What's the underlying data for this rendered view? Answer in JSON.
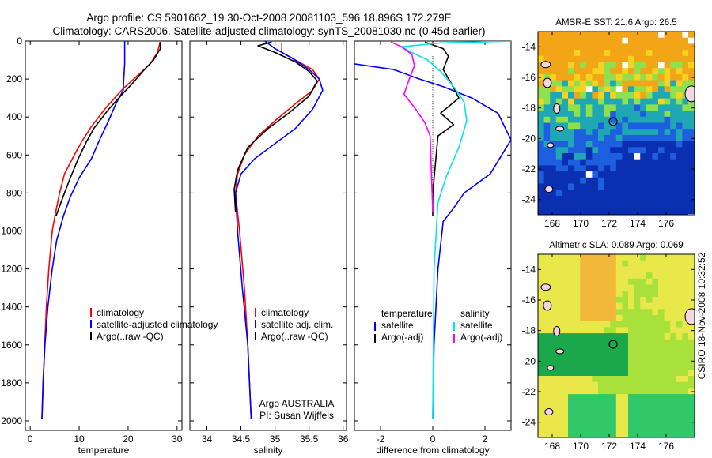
{
  "header": {
    "line1": "Argo profile: CS 5901662_19 30-Oct-2008 20081103_596 18.896S 172.279E",
    "line2": "Climatology: CARS2006. Satellite-adjusted climatology: synTS_20081030.nc (0.45d earlier)"
  },
  "side_label": "CSIRO 18-Nov-2008 10:32:52",
  "colors": {
    "climatology": "#ff0000",
    "satellite": "#0000ff",
    "argo": "#000000",
    "satellite_salinity": "#00e5ee",
    "argo_salinity_adj": "#ff00ff"
  },
  "chart_data": [
    {
      "id": "temperature",
      "type": "line",
      "xlabel": "temperature",
      "ylabel": "",
      "xlim": [
        -1,
        31
      ],
      "ylim": [
        2050,
        0
      ],
      "y_reversed": true,
      "xticks": [
        "0",
        "10",
        "20",
        "30"
      ],
      "xtick_values": [
        0,
        10,
        20,
        30
      ],
      "yticks": [
        "0",
        "200",
        "400",
        "600",
        "800",
        "1000",
        "1200",
        "1400",
        "1600",
        "1800",
        "2000"
      ],
      "ytick_values": [
        0,
        200,
        400,
        600,
        800,
        1000,
        1200,
        1400,
        1600,
        1800,
        2000
      ],
      "legend": [
        "climatology",
        "satellite-adjusted climatology",
        "Argo(..raw -QC)"
      ],
      "legend_placement": "lower-right",
      "series": [
        {
          "name": "climatology",
          "color": "#ff0000",
          "x": [
            26.5,
            26,
            24.5,
            22,
            19,
            15.5,
            12.5,
            10.5,
            9,
            7,
            6,
            5.2,
            4.5,
            3.8,
            3.3,
            2.8,
            2.4
          ],
          "y": [
            10,
            60,
            120,
            180,
            250,
            350,
            450,
            530,
            600,
            700,
            800,
            900,
            1000,
            1200,
            1400,
            1700,
            1990
          ]
        },
        {
          "name": "satellite-adjusted climatology",
          "color": "#0000ff",
          "x": [
            19.3,
            19.3,
            19.1,
            19,
            17.5,
            16,
            14,
            12.5,
            10,
            8.2,
            6.8,
            5.4,
            4.5,
            3.6,
            3,
            2.6,
            2.4
          ],
          "y": [
            0,
            120,
            200,
            260,
            330,
            420,
            530,
            620,
            720,
            820,
            920,
            1050,
            1200,
            1400,
            1600,
            1800,
            1990
          ]
        },
        {
          "name": "Argo(..raw -QC)",
          "color": "#000000",
          "x": [
            26.5,
            26.6,
            25.2,
            23,
            21,
            18.8,
            16,
            13,
            11.5,
            9.8,
            8.2,
            7,
            6,
            5.3
          ],
          "y": [
            5,
            40,
            100,
            160,
            220,
            280,
            360,
            460,
            530,
            620,
            720,
            800,
            870,
            920
          ]
        }
      ]
    },
    {
      "id": "salinity",
      "type": "line",
      "xlabel": "salinity",
      "ylabel": "",
      "xlim": [
        33.75,
        36.05
      ],
      "ylim": [
        2050,
        0
      ],
      "y_reversed": true,
      "xticks": [
        "34",
        "34.5",
        "35",
        "35.5",
        "36"
      ],
      "xtick_values": [
        34,
        34.5,
        35,
        35.5,
        36
      ],
      "legend": [
        "climatology",
        "satellite adj. clim.",
        "Argo(..raw -QC)"
      ],
      "legend_placement": "lower-right",
      "annotations": [
        "Argo AUSTRALIA",
        "PI: Susan Wijffels"
      ],
      "series": [
        {
          "name": "climatology",
          "color": "#ff0000",
          "x": [
            35.1,
            35.1,
            35.3,
            35.55,
            35.65,
            35.55,
            35.3,
            35.0,
            34.75,
            34.55,
            34.45,
            34.42,
            34.48,
            34.55,
            34.6,
            34.65
          ],
          "y": [
            10,
            60,
            100,
            150,
            200,
            260,
            330,
            420,
            500,
            600,
            700,
            800,
            1000,
            1300,
            1600,
            1990
          ]
        },
        {
          "name": "satellite adj. clim.",
          "color": "#0000ff",
          "x": [
            34.85,
            35.0,
            35.25,
            35.5,
            35.65,
            35.7,
            35.55,
            35.3,
            35.0,
            34.7,
            34.5,
            34.42,
            34.45,
            34.52,
            34.6,
            34.65
          ],
          "y": [
            0,
            40,
            90,
            150,
            200,
            260,
            360,
            460,
            540,
            620,
            700,
            800,
            1000,
            1300,
            1600,
            1990
          ]
        },
        {
          "name": "Argo(..raw -QC)",
          "color": "#000000",
          "x": [
            34.95,
            34.75,
            35.0,
            35.3,
            35.5,
            35.62,
            35.5,
            35.2,
            34.9,
            34.6,
            34.45,
            34.4,
            34.42
          ],
          "y": [
            5,
            25,
            60,
            110,
            160,
            210,
            290,
            380,
            460,
            560,
            680,
            780,
            900
          ]
        }
      ]
    },
    {
      "id": "difference",
      "type": "line",
      "xlabel": "difference from climatology",
      "ylabel": "",
      "xlim": [
        -3,
        3
      ],
      "ylim": [
        2050,
        0
      ],
      "y_reversed": true,
      "xticks": [
        "-2",
        "0",
        "2"
      ],
      "xtick_values": [
        -2,
        0,
        2
      ],
      "legend_groups": [
        {
          "title": "temperature",
          "items": [
            "satellite",
            "Argo(-adj)"
          ]
        },
        {
          "title": "salinity",
          "items": [
            "satellite",
            "Argo(-adj)"
          ]
        }
      ],
      "legend_placement": "lower-center",
      "series": [
        {
          "name": "satellite",
          "group": "temperature",
          "color": "#0000ff",
          "x": [
            -3,
            -1.5,
            -0.5,
            0.4,
            1.5,
            2.5,
            3,
            2.2,
            1.2,
            0.8,
            0.4,
            0.2,
            0.05,
            0
          ],
          "y": [
            120,
            150,
            200,
            240,
            300,
            380,
            520,
            700,
            800,
            880,
            950,
            1200,
            1600,
            1990
          ]
        },
        {
          "name": "Argo(-adj)",
          "group": "temperature",
          "color": "#000000",
          "x": [
            -0.3,
            0.4,
            0.6,
            0.4,
            0.7,
            1.0,
            0.3,
            0.8,
            0.2,
            0.1,
            0.0,
            0.0
          ],
          "y": [
            5,
            40,
            80,
            150,
            220,
            300,
            380,
            440,
            500,
            650,
            800,
            920
          ]
        },
        {
          "name": "satellite",
          "group": "salinity",
          "color": "#00e5ee",
          "x": [
            3,
            0.3,
            -1.2,
            -0.8,
            -0.2,
            0.3,
            0.8,
            1.2,
            1.3,
            1.0,
            0.5,
            0.2,
            0.05,
            0
          ],
          "y": [
            0,
            10,
            30,
            60,
            100,
            160,
            240,
            320,
            420,
            560,
            720,
            850,
            1200,
            1990
          ]
        },
        {
          "name": "Argo(-adj)",
          "group": "salinity",
          "color": "#ff00ff",
          "x": [
            -1.6,
            -1.2,
            -0.8,
            -0.7,
            -0.9,
            -1.1,
            -0.7,
            -0.3,
            -0.1,
            0.0
          ],
          "y": [
            5,
            30,
            70,
            130,
            200,
            280,
            350,
            430,
            500,
            900
          ]
        }
      ]
    },
    {
      "id": "sst-map",
      "type": "heatmap",
      "title": "AMSR-E SST: 21.6 Argo: 26.5",
      "xlim": [
        167,
        178
      ],
      "ylim": [
        -25,
        -13
      ],
      "xticks": [
        "168",
        "170",
        "172",
        "174",
        "176"
      ],
      "xtick_values": [
        168,
        170,
        172,
        174,
        176
      ],
      "yticks": [
        "-14",
        "-16",
        "-18",
        "-20",
        "-22",
        "-24"
      ],
      "ytick_values": [
        -14,
        -16,
        -18,
        -20,
        -22,
        -24
      ],
      "marker": {
        "lon": 172.279,
        "lat": -18.896
      },
      "colors": [
        "#f2a516",
        "#f7d21e",
        "#8ee04e",
        "#1fa8b4",
        "#1e5fe0",
        "#0a2fb0",
        "#ffffff"
      ]
    },
    {
      "id": "sla-map",
      "type": "heatmap",
      "title": "Altimetric SLA: 0.089 Argo: 0.069",
      "xlim": [
        167,
        178
      ],
      "ylim": [
        -25,
        -13
      ],
      "xticks": [
        "168",
        "170",
        "172",
        "174",
        "176"
      ],
      "xtick_values": [
        168,
        170,
        172,
        174,
        176
      ],
      "yticks": [
        "-14",
        "-16",
        "-18",
        "-20",
        "-22",
        "-24"
      ],
      "ytick_values": [
        -14,
        -16,
        -18,
        -20,
        -22,
        -24
      ],
      "marker": {
        "lon": 172.279,
        "lat": -18.896
      },
      "colors": [
        "#e8e84a",
        "#f2b83a",
        "#a8e03c",
        "#30c868",
        "#1aa84a"
      ]
    }
  ]
}
